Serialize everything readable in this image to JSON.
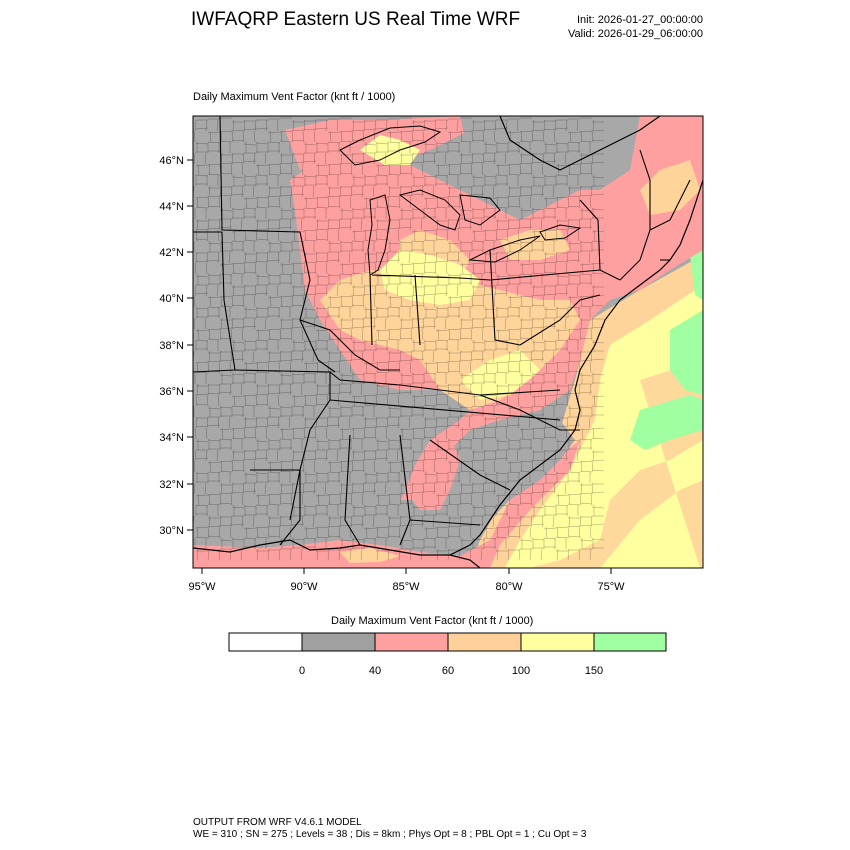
{
  "header": {
    "title": "IWFAQRP Eastern US Real Time WRF",
    "init": "Init: 2026-01-27_00:00:00",
    "valid": "Valid: 2026-01-29_06:00:00"
  },
  "plot": {
    "label": "Daily Maximum Vent Factor   (knt ft / 1000)",
    "lat_labels": [
      "46°N",
      "44°N",
      "42°N",
      "40°N",
      "38°N",
      "36°N",
      "34°N",
      "32°N",
      "30°N"
    ],
    "lon_labels": [
      "95°W",
      "90°W",
      "85°W",
      "80°W",
      "75°W"
    ]
  },
  "colorbar": {
    "title": "Daily Maximum Vent Factor  (knt ft / 1000)",
    "labels": [
      "0",
      "40",
      "60",
      "100",
      "150"
    ],
    "colors": [
      "#ffffff",
      "#a0a0a0",
      "#ffa0a0",
      "#ffd0a0",
      "#ffff a0",
      "#a0ffa0"
    ]
  },
  "legend_colors": {
    "below_0": "#ffffff",
    "c0_40": "#a0a0a0",
    "c40_60": "#ffa0a0",
    "c60_100": "#ffd09a",
    "c100_150": "#ffffa0",
    "c150_plus": "#a0ffa0",
    "water_gray": "#a8a8a8"
  },
  "footer": {
    "line1": "OUTPUT FROM WRF V4.6.1 MODEL",
    "line2": "WE = 310 ; SN = 275 ; Levels = 38 ; Dis = 8km ; Phys Opt = 8 ; PBL Opt = 1 ; Cu Opt = 3"
  }
}
